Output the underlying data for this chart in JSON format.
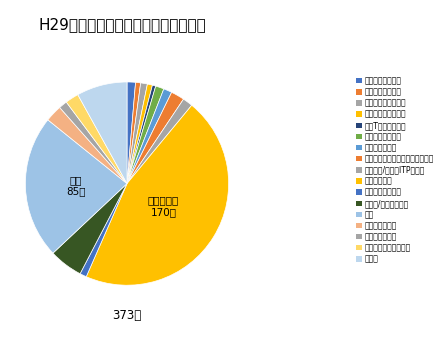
{
  "title": "H29年度　腫瘍・血液内科新患患者数",
  "total_label": "373名",
  "labels": [
    "急性骨髄性白血病",
    "慢性骨髄性白血病",
    "急性リンパ性白血病",
    "慢性リンパ性白血病",
    "成人T細胞性白血病",
    "骨髄異形成症候群",
    "骨髄増殖性疾患",
    "貧血（再性不良性・溶血性・等）",
    "血球減少/増多（ITP含む）",
    "悪性リンパ腫",
    "反応性リンパ節炎",
    "骨髄腫/形質細胞腫瘍",
    "乳癌",
    "その他の固形癌",
    "移植片対宿主病",
    "造血幹細胞移植ドナー",
    "その他"
  ],
  "values": [
    5,
    3,
    4,
    3,
    2,
    5,
    5,
    8,
    6,
    170,
    4,
    20,
    85,
    10,
    5,
    8,
    30
  ],
  "colors": [
    "#4472C4",
    "#ED7D31",
    "#A5A5A5",
    "#FFC000",
    "#264478",
    "#70AD47",
    "#5B9BD5",
    "#ED7D31",
    "#A5A5A5",
    "#FFC000",
    "#4472C4",
    "#375623",
    "#9DC3E6",
    "#F4B183",
    "#A5A5A5",
    "#FFD966",
    "#BDD7EE"
  ],
  "startangle": 90,
  "legend_fontsize": 5.5,
  "title_fontsize": 11
}
